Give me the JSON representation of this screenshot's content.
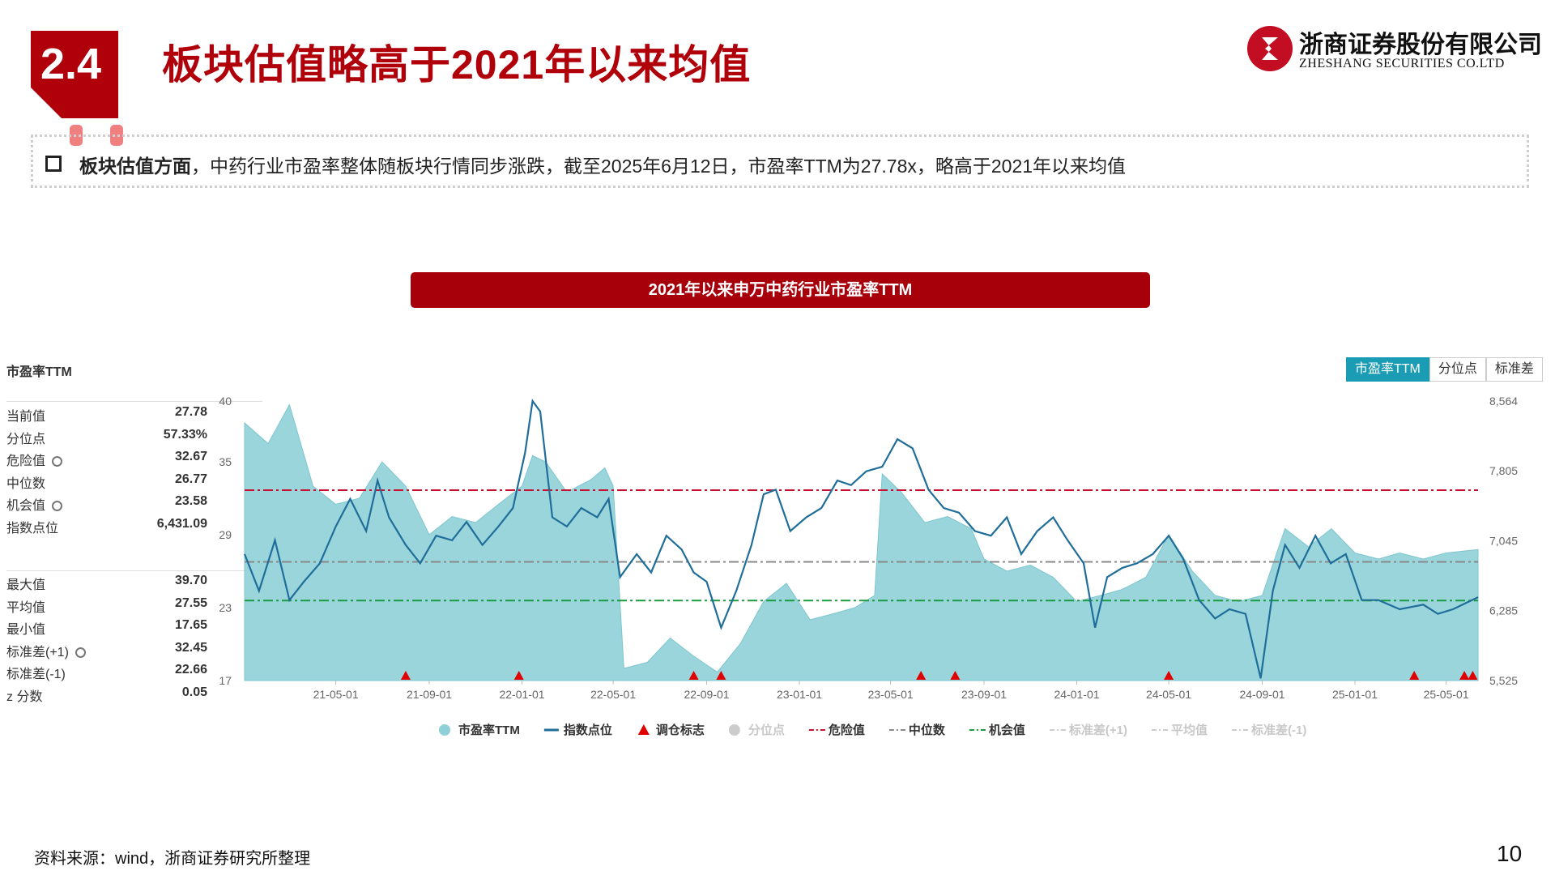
{
  "header": {
    "section_number": "2.4",
    "title": "板块估值略高于2021年以来均值",
    "logo_cn": "浙商证券股份有限公司",
    "logo_en": "ZHESHANG SECURITIES CO.LTD"
  },
  "bullet": {
    "bold": "板块估值方面",
    "text": "，中药行业市盈率整体随板块行情同步涨跌，截至2025年6月12日，市盈率TTM为27.78x，略高于2021年以来均值"
  },
  "chart_title": "2021年以来申万中药行业市盈率TTM",
  "panel": {
    "title": "市盈率TTM",
    "stats": [
      {
        "label": "当前值",
        "value": "27.78",
        "gear": false
      },
      {
        "label": "分位点",
        "value": "57.33%",
        "gear": false
      },
      {
        "label": "危险值",
        "value": "32.67",
        "gear": true
      },
      {
        "label": "中位数",
        "value": "26.77",
        "gear": false
      },
      {
        "label": "机会值",
        "value": "23.58",
        "gear": true
      },
      {
        "label": "指数点位",
        "value": "6,431.09",
        "gear": false
      }
    ],
    "stats2": [
      {
        "label": "最大值",
        "value": "39.70",
        "gear": false
      },
      {
        "label": "平均值",
        "value": "27.55",
        "gear": false
      },
      {
        "label": "最小值",
        "value": "17.65",
        "gear": false
      },
      {
        "label": "标准差(+1)",
        "value": "32.45",
        "gear": true
      },
      {
        "label": "标准差(-1)",
        "value": "22.66",
        "gear": false
      },
      {
        "label": "z 分数",
        "value": "0.05",
        "gear": false
      }
    ]
  },
  "tabs": [
    "市盈率TTM",
    "分位点",
    "标准差"
  ],
  "chart_data": {
    "type": "area",
    "x_ticks": [
      "21-05-01",
      "21-09-01",
      "22-01-01",
      "22-05-01",
      "22-09-01",
      "23-01-01",
      "23-05-01",
      "23-09-01",
      "24-01-01",
      "24-05-01",
      "24-09-01",
      "25-01-01",
      "25-05-01"
    ],
    "y_left_ticks": [
      "40",
      "35",
      "29",
      "23",
      "17"
    ],
    "y_right_ticks": [
      "8,564",
      "7,805",
      "7,045",
      "6,285",
      "5,525"
    ],
    "y_left_range": [
      17,
      40
    ],
    "y_right_range": [
      5525,
      8564
    ],
    "x_range": [
      "2021-01-01",
      "2025-06-12"
    ],
    "series": [
      {
        "name": "市盈率TTM",
        "color": "#8fd0d8",
        "points": [
          [
            "2021-01-01",
            38.2
          ],
          [
            "2021-02-01",
            36.5
          ],
          [
            "2021-03-01",
            39.7
          ],
          [
            "2021-04-01",
            33.0
          ],
          [
            "2021-05-01",
            31.5
          ],
          [
            "2021-06-01",
            32.0
          ],
          [
            "2021-07-01",
            35.0
          ],
          [
            "2021-08-01",
            33.0
          ],
          [
            "2021-09-01",
            29.0
          ],
          [
            "2021-10-01",
            30.5
          ],
          [
            "2021-11-01",
            30.0
          ],
          [
            "2021-12-01",
            31.5
          ],
          [
            "2022-01-01",
            33.0
          ],
          [
            "2022-01-15",
            35.5
          ],
          [
            "2022-02-01",
            35.0
          ],
          [
            "2022-03-01",
            32.5
          ],
          [
            "2022-04-01",
            33.5
          ],
          [
            "2022-04-20",
            34.5
          ],
          [
            "2022-05-01",
            33.0
          ],
          [
            "2022-05-15",
            18.0
          ],
          [
            "2022-06-15",
            18.5
          ],
          [
            "2022-07-15",
            20.5
          ],
          [
            "2022-08-15",
            19.0
          ],
          [
            "2022-09-15",
            17.7
          ],
          [
            "2022-10-15",
            20.0
          ],
          [
            "2022-11-15",
            23.5
          ],
          [
            "2022-12-15",
            25.0
          ],
          [
            "2023-01-15",
            22.0
          ],
          [
            "2023-02-15",
            22.5
          ],
          [
            "2023-03-15",
            23.0
          ],
          [
            "2023-04-10",
            24.0
          ],
          [
            "2023-04-20",
            34.0
          ],
          [
            "2023-05-15",
            32.5
          ],
          [
            "2023-06-15",
            30.0
          ],
          [
            "2023-07-15",
            30.5
          ],
          [
            "2023-08-15",
            29.5
          ],
          [
            "2023-09-01",
            27.0
          ],
          [
            "2023-10-01",
            26.0
          ],
          [
            "2023-11-01",
            26.5
          ],
          [
            "2023-12-01",
            25.5
          ],
          [
            "2024-01-01",
            23.5
          ],
          [
            "2024-02-01",
            24.0
          ],
          [
            "2024-03-01",
            24.5
          ],
          [
            "2024-04-01",
            25.5
          ],
          [
            "2024-05-01",
            29.0
          ],
          [
            "2024-06-01",
            26.0
          ],
          [
            "2024-07-01",
            24.0
          ],
          [
            "2024-08-01",
            23.5
          ],
          [
            "2024-09-01",
            24.0
          ],
          [
            "2024-10-01",
            29.5
          ],
          [
            "2024-11-01",
            28.0
          ],
          [
            "2024-12-01",
            29.5
          ],
          [
            "2025-01-01",
            27.5
          ],
          [
            "2025-02-01",
            27.0
          ],
          [
            "2025-03-01",
            27.5
          ],
          [
            "2025-04-01",
            27.0
          ],
          [
            "2025-05-01",
            27.5
          ],
          [
            "2025-06-12",
            27.78
          ]
        ]
      },
      {
        "name": "指数点位",
        "color": "#1f6e99",
        "points": [
          [
            "2021-01-01",
            6900
          ],
          [
            "2021-01-20",
            6500
          ],
          [
            "2021-02-10",
            7050
          ],
          [
            "2021-03-01",
            6400
          ],
          [
            "2021-03-20",
            6600
          ],
          [
            "2021-04-10",
            6800
          ],
          [
            "2021-05-01",
            7200
          ],
          [
            "2021-05-20",
            7500
          ],
          [
            "2021-06-10",
            7150
          ],
          [
            "2021-06-25",
            7700
          ],
          [
            "2021-07-10",
            7300
          ],
          [
            "2021-08-01",
            7000
          ],
          [
            "2021-08-20",
            6800
          ],
          [
            "2021-09-10",
            7100
          ],
          [
            "2021-10-01",
            7050
          ],
          [
            "2021-10-20",
            7250
          ],
          [
            "2021-11-10",
            7000
          ],
          [
            "2021-12-01",
            7200
          ],
          [
            "2021-12-20",
            7400
          ],
          [
            "2022-01-05",
            8000
          ],
          [
            "2022-01-15",
            8564
          ],
          [
            "2022-01-25",
            8450
          ],
          [
            "2022-02-10",
            7300
          ],
          [
            "2022-03-01",
            7200
          ],
          [
            "2022-03-20",
            7400
          ],
          [
            "2022-04-10",
            7300
          ],
          [
            "2022-04-25",
            7500
          ],
          [
            "2022-05-10",
            6650
          ],
          [
            "2022-06-01",
            6900
          ],
          [
            "2022-06-20",
            6700
          ],
          [
            "2022-07-10",
            7100
          ],
          [
            "2022-07-30",
            6950
          ],
          [
            "2022-08-15",
            6700
          ],
          [
            "2022-09-01",
            6600
          ],
          [
            "2022-09-20",
            6100
          ],
          [
            "2022-10-10",
            6500
          ],
          [
            "2022-10-30",
            7000
          ],
          [
            "2022-11-15",
            7550
          ],
          [
            "2022-12-01",
            7600
          ],
          [
            "2022-12-20",
            7150
          ],
          [
            "2023-01-10",
            7300
          ],
          [
            "2023-01-30",
            7400
          ],
          [
            "2023-02-20",
            7700
          ],
          [
            "2023-03-10",
            7650
          ],
          [
            "2023-03-30",
            7800
          ],
          [
            "2023-04-20",
            7850
          ],
          [
            "2023-05-10",
            8150
          ],
          [
            "2023-05-30",
            8050
          ],
          [
            "2023-06-20",
            7600
          ],
          [
            "2023-07-10",
            7400
          ],
          [
            "2023-07-30",
            7350
          ],
          [
            "2023-08-20",
            7150
          ],
          [
            "2023-09-10",
            7100
          ],
          [
            "2023-10-01",
            7300
          ],
          [
            "2023-10-20",
            6900
          ],
          [
            "2023-11-10",
            7150
          ],
          [
            "2023-12-01",
            7300
          ],
          [
            "2023-12-20",
            7050
          ],
          [
            "2024-01-10",
            6800
          ],
          [
            "2024-01-25",
            6100
          ],
          [
            "2024-02-10",
            6650
          ],
          [
            "2024-03-01",
            6750
          ],
          [
            "2024-03-20",
            6800
          ],
          [
            "2024-04-10",
            6900
          ],
          [
            "2024-05-01",
            7100
          ],
          [
            "2024-05-20",
            6850
          ],
          [
            "2024-06-10",
            6400
          ],
          [
            "2024-07-01",
            6200
          ],
          [
            "2024-07-20",
            6300
          ],
          [
            "2024-08-10",
            6250
          ],
          [
            "2024-08-30",
            5550
          ],
          [
            "2024-09-15",
            6500
          ],
          [
            "2024-10-01",
            7000
          ],
          [
            "2024-10-20",
            6750
          ],
          [
            "2024-11-10",
            7100
          ],
          [
            "2024-11-30",
            6800
          ],
          [
            "2024-12-20",
            6900
          ],
          [
            "2025-01-10",
            6400
          ],
          [
            "2025-02-01",
            6400
          ],
          [
            "2025-03-01",
            6300
          ],
          [
            "2025-04-01",
            6350
          ],
          [
            "2025-04-20",
            6250
          ],
          [
            "2025-05-10",
            6300
          ],
          [
            "2025-06-12",
            6431
          ]
        ]
      }
    ],
    "reference_lines": [
      {
        "name": "危险值",
        "value": 32.67,
        "color": "#c8102e",
        "dash": "dash-dot"
      },
      {
        "name": "中位数",
        "value": 26.77,
        "color": "#888888",
        "dash": "dash-dot"
      },
      {
        "name": "机会值",
        "value": 23.58,
        "color": "#1a9c3e",
        "dash": "dash-dot"
      }
    ],
    "markers": {
      "name": "调仓标志",
      "color": "#e00000",
      "dates": [
        "2021-08-01",
        "2021-12-28",
        "2022-08-15",
        "2022-09-20",
        "2023-06-10",
        "2023-07-25",
        "2024-05-01",
        "2025-03-20",
        "2025-05-25",
        "2025-06-05"
      ]
    },
    "legend": [
      {
        "name": "市盈率TTM",
        "kind": "dot",
        "color": "#8fd0d8",
        "active": true
      },
      {
        "name": "指数点位",
        "kind": "line",
        "color": "#1f6e99",
        "active": true
      },
      {
        "name": "调仓标志",
        "kind": "triangle",
        "color": "#e00000",
        "active": true
      },
      {
        "name": "分位点",
        "kind": "dot",
        "color": "#cccccc",
        "active": false
      },
      {
        "name": "危险值",
        "kind": "dashdot",
        "color": "#c8102e",
        "active": true
      },
      {
        "name": "中位数",
        "kind": "dashdot",
        "color": "#888888",
        "active": true
      },
      {
        "name": "机会值",
        "kind": "dashdot",
        "color": "#1a9c3e",
        "active": true
      },
      {
        "name": "标准差(+1)",
        "kind": "dashdot",
        "color": "#cccccc",
        "active": false
      },
      {
        "name": "平均值",
        "kind": "dashdot",
        "color": "#cccccc",
        "active": false
      },
      {
        "name": "标准差(-1)",
        "kind": "dashdot",
        "color": "#cccccc",
        "active": false
      }
    ]
  },
  "footer": {
    "source": "资料来源：wind，浙商证券研究所整理",
    "page": "10"
  }
}
